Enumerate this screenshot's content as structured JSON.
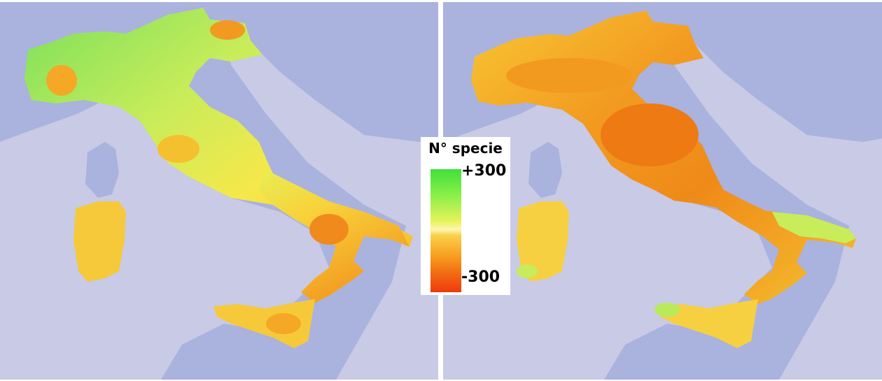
{
  "legend": {
    "title": "N° specie",
    "max_label": "+300",
    "min_label": "-300",
    "min_value": -300,
    "max_value": 300
  },
  "colors": {
    "sea_deep": "#aab2de",
    "sea_shallow": "#c8cae6",
    "land_green": "#6fe05a",
    "land_yellow": "#f6e84a",
    "land_orange": "#f5b525",
    "land_red": "#ee6412"
  },
  "maps": [
    {
      "id": "left",
      "region": "Italy",
      "value_range": [
        -200,
        300
      ]
    },
    {
      "id": "right",
      "region": "Italy",
      "value_range": [
        -300,
        100
      ]
    }
  ]
}
